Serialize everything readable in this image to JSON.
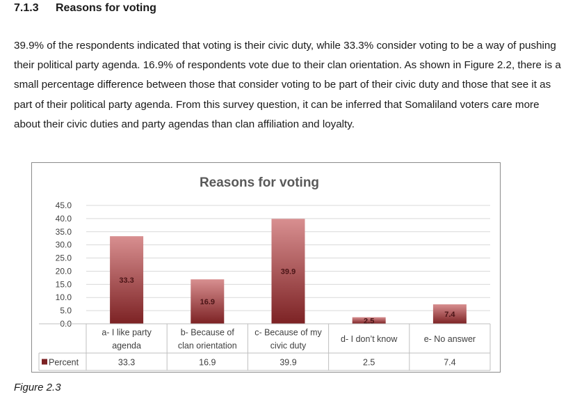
{
  "section": {
    "number": "7.1.3",
    "title": "Reasons for voting"
  },
  "paragraph": "39.9% of the respondents indicated that voting is their civic duty, while 33.3% consider voting to be a way of pushing their political party agenda. 16.9% of respondents vote due to their clan orientation. As shown in Figure 2.2, there is a small percentage difference between those that consider voting to be part of their civic duty and those that see it as part of their political party agenda. From this survey question, it can be inferred that Somaliland voters care more about their civic duties and party agendas than clan affiliation and loyalty.",
  "figure_caption": "Figure 2.3",
  "colors": {
    "bar_top": "#d88f90",
    "bar_bottom": "#7c2224",
    "grid": "#d9d9d9",
    "text": "#404040",
    "title": "#595959"
  },
  "chart_data": {
    "type": "bar",
    "title": "Reasons for voting",
    "categories": [
      [
        "a- I like party",
        "agenda"
      ],
      [
        "b- Because of",
        "clan orientation"
      ],
      [
        "c- Because of my",
        "civic duty"
      ],
      [
        "d- I don’t know"
      ],
      [
        "e- No answer"
      ]
    ],
    "series": [
      {
        "name": "Percent",
        "values": [
          33.3,
          16.9,
          39.9,
          2.5,
          7.4
        ]
      }
    ],
    "value_labels": [
      "33.3",
      "16.9",
      "39.9",
      "2.5",
      "7.4"
    ],
    "table_values": [
      "33.3",
      "16.9",
      "39.9",
      "2.5",
      "7.4"
    ],
    "ylim": [
      0,
      45
    ],
    "yticks": [
      "0.0",
      "5.0",
      "10.0",
      "15.0",
      "20.0",
      "25.0",
      "30.0",
      "35.0",
      "40.0",
      "45.0"
    ],
    "ytick_step": 5,
    "legend": "data-table"
  }
}
